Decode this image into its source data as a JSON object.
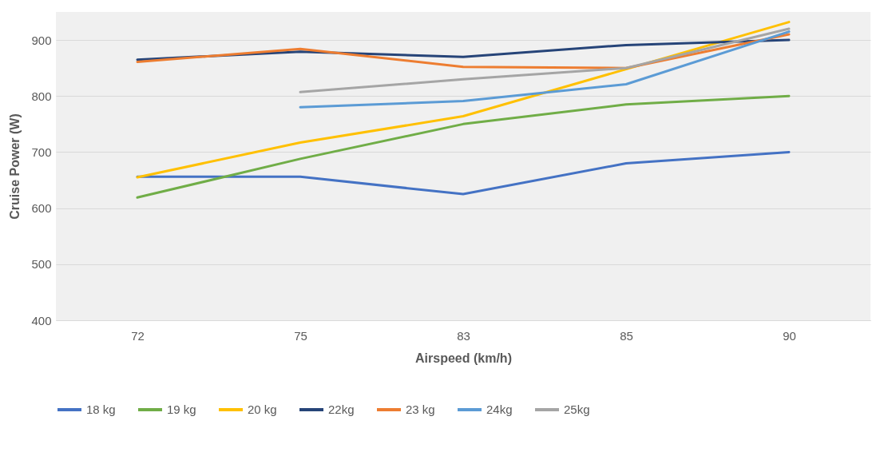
{
  "chart_data": {
    "type": "line",
    "xlabel": "Airspeed (km/h)",
    "ylabel": "Cruise Power (W)",
    "categories": [
      "72",
      "75",
      "83",
      "85",
      "90"
    ],
    "ylim": [
      400,
      950
    ],
    "yticks": [
      400,
      500,
      600,
      700,
      800,
      900
    ],
    "grid": "y",
    "legend": "bottom",
    "marker": "none",
    "line_style": "solid",
    "series": [
      {
        "name": "18 kg",
        "color": "#4472c4",
        "values": [
          656,
          656,
          625,
          680,
          700
        ]
      },
      {
        "name": "19 kg",
        "color": "#70ad47",
        "values": [
          619,
          688,
          750,
          785,
          800
        ]
      },
      {
        "name": "20 kg",
        "color": "#ffc000",
        "values": [
          655,
          717,
          764,
          848,
          932
        ]
      },
      {
        "name": "22kg",
        "color": "#264478",
        "values": [
          865,
          879,
          870,
          891,
          900
        ]
      },
      {
        "name": "23 kg",
        "color": "#ed7d31",
        "values": [
          861,
          884,
          852,
          850,
          910
        ]
      },
      {
        "name": "24kg",
        "color": "#5b9bd5",
        "values": [
          null,
          780,
          791,
          821,
          915
        ]
      },
      {
        "name": "25kg",
        "color": "#a5a5a5",
        "values": [
          null,
          807,
          830,
          850,
          920
        ]
      }
    ]
  }
}
